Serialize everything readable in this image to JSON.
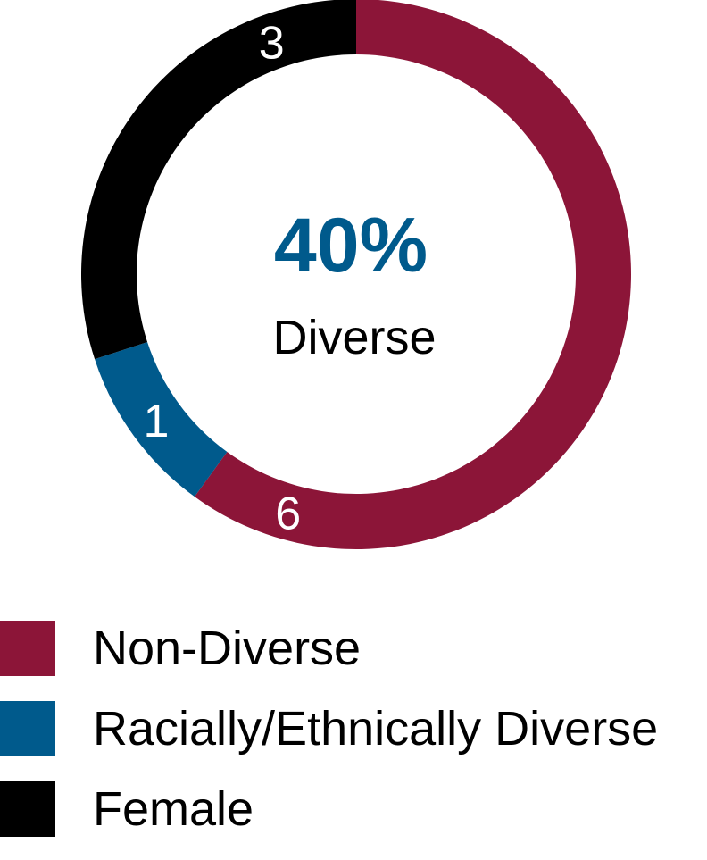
{
  "chart_data": {
    "type": "pie",
    "subtype": "donut",
    "center": {
      "value": "40%",
      "caption": "Diverse"
    },
    "slices": [
      {
        "name": "Non-Diverse",
        "value": 6,
        "label": "6",
        "color": "#8c1538"
      },
      {
        "name": "Racially/Ethnically Diverse",
        "value": 1,
        "label": "1",
        "color": "#005a8c"
      },
      {
        "name": "Female",
        "value": 3,
        "label": "3",
        "color": "#000000"
      }
    ],
    "legend_position": "bottom-left",
    "center_value_color": "#005a8c"
  }
}
